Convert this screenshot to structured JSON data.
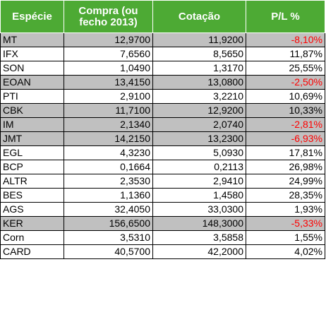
{
  "table": {
    "headers": [
      "Espécie",
      "Compra (ou fecho 2013)",
      "Cotação",
      "P/L %"
    ],
    "rows": [
      {
        "especie": "MT",
        "compra": "12,9700",
        "cotacao": "11,9200",
        "pl": "-8,10%",
        "negative": true,
        "shaded": true
      },
      {
        "especie": "IFX",
        "compra": "7,6560",
        "cotacao": "8,5650",
        "pl": "11,87%",
        "negative": false,
        "shaded": false
      },
      {
        "especie": "SON",
        "compra": "1,0490",
        "cotacao": "1,3170",
        "pl": "25,55%",
        "negative": false,
        "shaded": false
      },
      {
        "especie": "EOAN",
        "compra": "13,4150",
        "cotacao": "13,0800",
        "pl": "-2,50%",
        "negative": true,
        "shaded": true
      },
      {
        "especie": "PTI",
        "compra": "2,9100",
        "cotacao": "3,2210",
        "pl": "10,69%",
        "negative": false,
        "shaded": false
      },
      {
        "especie": "CBK",
        "compra": "11,7100",
        "cotacao": "12,9200",
        "pl": "10,33%",
        "negative": false,
        "shaded": true
      },
      {
        "especie": "IM",
        "compra": "2,1340",
        "cotacao": "2,0740",
        "pl": "-2,81%",
        "negative": true,
        "shaded": true
      },
      {
        "especie": "JMT",
        "compra": "14,2150",
        "cotacao": "13,2300",
        "pl": "-6,93%",
        "negative": true,
        "shaded": true
      },
      {
        "especie": "EGL",
        "compra": "4,3230",
        "cotacao": "5,0930",
        "pl": "17,81%",
        "negative": false,
        "shaded": false
      },
      {
        "especie": "BCP",
        "compra": "0,1664",
        "cotacao": "0,2113",
        "pl": "26,98%",
        "negative": false,
        "shaded": false
      },
      {
        "especie": "ALTR",
        "compra": "2,3530",
        "cotacao": "2,9410",
        "pl": "24,99%",
        "negative": false,
        "shaded": false
      },
      {
        "especie": "BES",
        "compra": "1,1360",
        "cotacao": "1,4580",
        "pl": "28,35%",
        "negative": false,
        "shaded": false
      },
      {
        "especie": "AGS",
        "compra": "32,4050",
        "cotacao": "33,0300",
        "pl": "1,93%",
        "negative": false,
        "shaded": false
      },
      {
        "especie": "KER",
        "compra": "156,6500",
        "cotacao": "148,3000",
        "pl": "-5,33%",
        "negative": true,
        "shaded": true
      },
      {
        "especie": "Corn",
        "compra": "3,5310",
        "cotacao": "3,5858",
        "pl": "1,55%",
        "negative": false,
        "shaded": false
      },
      {
        "especie": "CARD",
        "compra": "40,5700",
        "cotacao": "42,2000",
        "pl": "4,02%",
        "negative": false,
        "shaded": false
      }
    ]
  },
  "colors": {
    "header_bg": "#4daa34",
    "header_text": "#ffffff",
    "shaded_row": "#c0c0c0",
    "negative_text": "#ff0000"
  }
}
